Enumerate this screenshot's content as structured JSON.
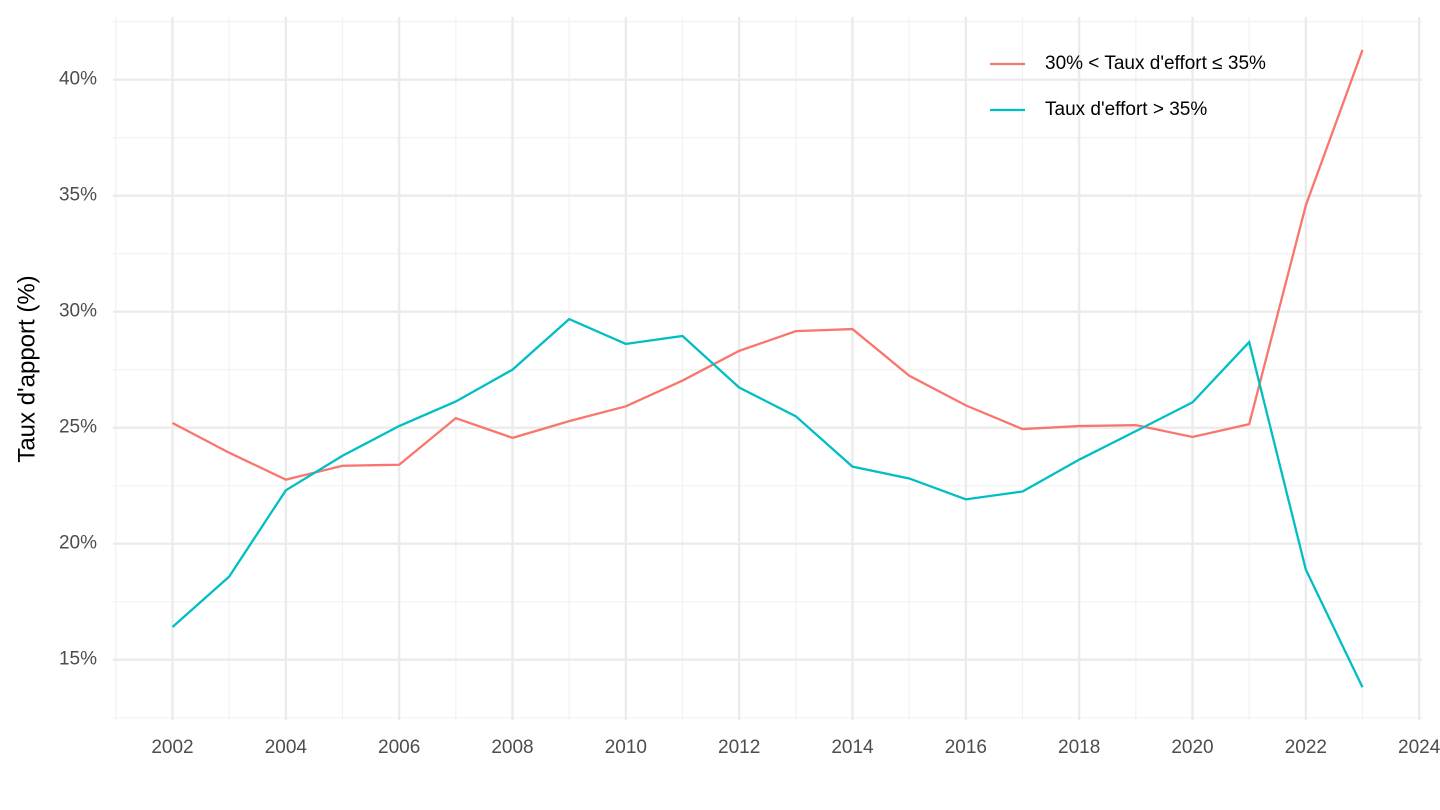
{
  "chart_data": {
    "type": "line",
    "ylabel": "Taux d'apport (%)",
    "x": [
      2002,
      2003,
      2004,
      2005,
      2006,
      2007,
      2008,
      2009,
      2010,
      2011,
      2012,
      2013,
      2014,
      2015,
      2016,
      2017,
      2018,
      2019,
      2020,
      2021,
      2022,
      2023
    ],
    "series": [
      {
        "name": "30% < Taux d'effort ≤ 35%",
        "color": "#f8766d",
        "values": [
          25.2,
          23.92,
          22.76,
          23.36,
          23.4,
          25.41,
          24.56,
          25.28,
          25.92,
          27.03,
          28.31,
          29.16,
          29.25,
          27.24,
          25.96,
          24.94,
          25.07,
          25.11,
          24.6,
          25.15,
          34.58,
          41.28
        ]
      },
      {
        "name": "Taux d'effort > 35%",
        "color": "#00bfc4",
        "values": [
          16.41,
          18.58,
          22.3,
          23.79,
          25.07,
          26.13,
          27.5,
          29.68,
          28.61,
          28.95,
          26.73,
          25.49,
          23.32,
          22.81,
          21.91,
          22.25,
          23.62,
          24.85,
          26.09,
          28.69,
          18.88,
          13.81
        ]
      }
    ],
    "xlim": [
      2000.95,
      2024.05
    ],
    "xticks": [
      2002,
      2004,
      2006,
      2008,
      2010,
      2012,
      2014,
      2016,
      2018,
      2020,
      2022,
      2024
    ],
    "ylim": [
      12.4,
      42.7
    ],
    "yticks": [
      {
        "value": 15,
        "label": "15%"
      },
      {
        "value": 20,
        "label": "20%"
      },
      {
        "value": 25,
        "label": "25%"
      },
      {
        "value": 30,
        "label": "30%"
      },
      {
        "value": 35,
        "label": "35%"
      },
      {
        "value": 40,
        "label": "40%"
      }
    ],
    "grid": true,
    "legend": "top-right"
  }
}
